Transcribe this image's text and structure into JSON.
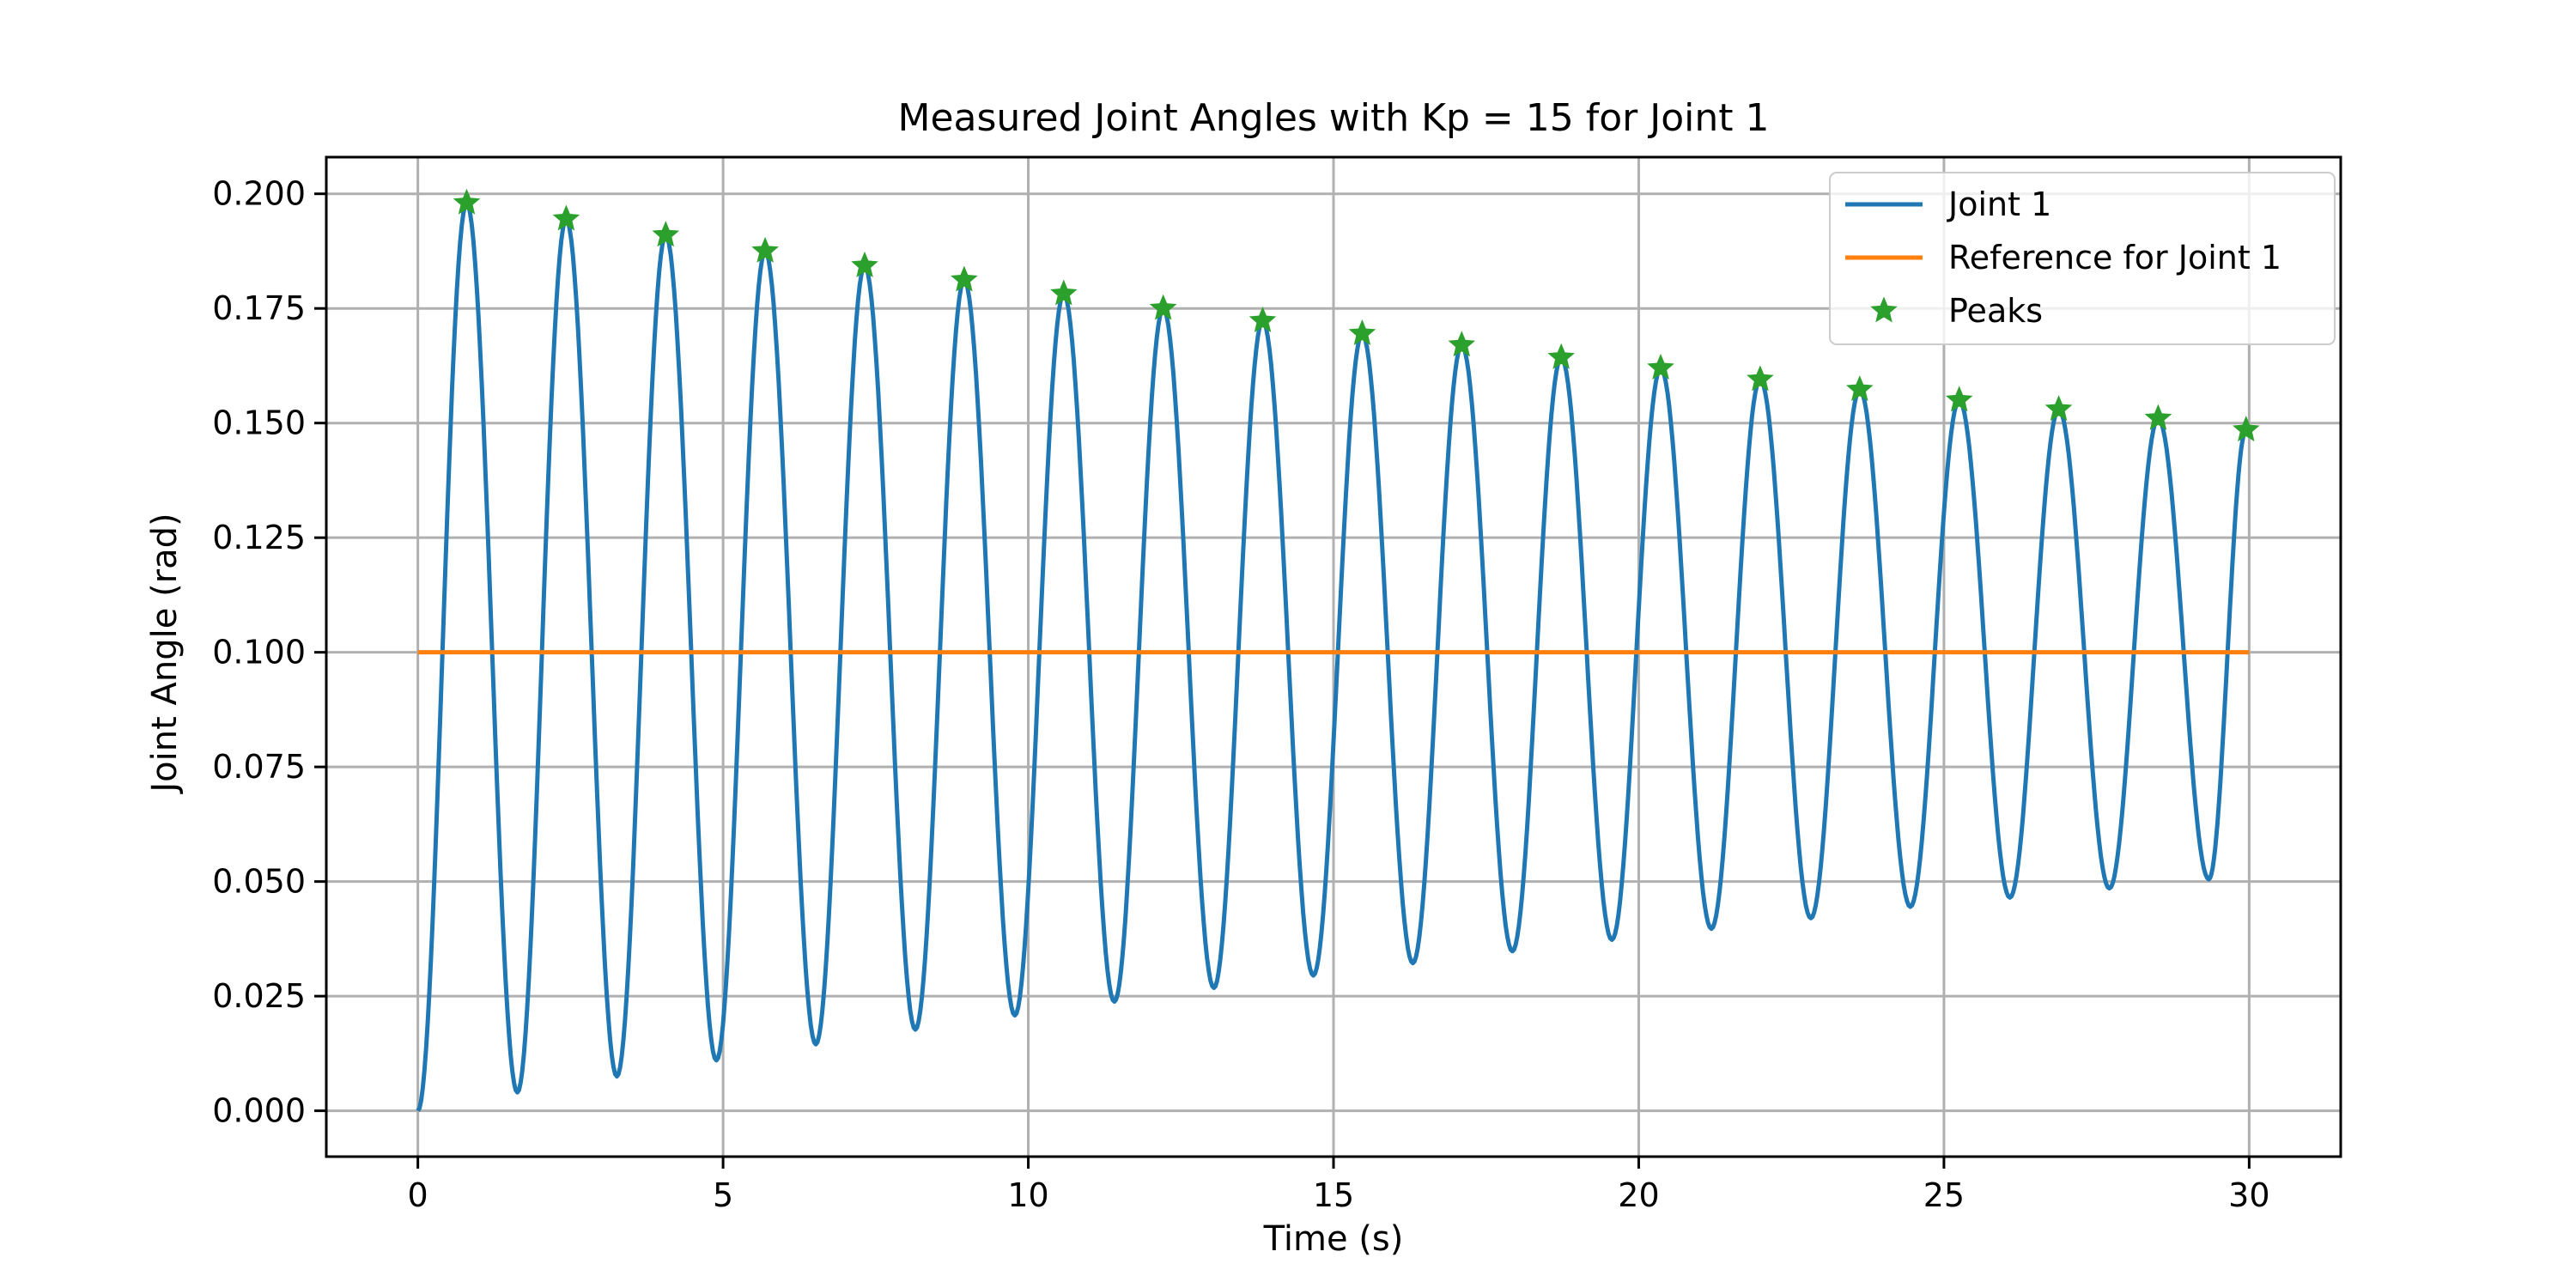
{
  "chart_data": {
    "type": "line",
    "title": "Measured Joint Angles with Kp = 15 for Joint 1",
    "xlabel": "Time (s)",
    "ylabel": "Joint Angle (rad)",
    "xlim": [
      -1.5,
      31.5
    ],
    "ylim": [
      -0.01,
      0.208
    ],
    "xticks": [
      0,
      5,
      10,
      15,
      20,
      25,
      30
    ],
    "xtick_labels": [
      "0",
      "5",
      "10",
      "15",
      "20",
      "25",
      "30"
    ],
    "yticks": [
      0.0,
      0.025,
      0.05,
      0.075,
      0.1,
      0.125,
      0.15,
      0.175,
      0.2
    ],
    "ytick_labels": [
      "0.000",
      "0.025",
      "0.050",
      "0.075",
      "0.100",
      "0.125",
      "0.150",
      "0.175",
      "0.200"
    ],
    "grid": true,
    "legend_position": "top-right",
    "colors": {
      "joint": "#1f77b4",
      "reference": "#ff7f0e",
      "peaks": "#2ca02c",
      "grid": "#b0b0b0"
    },
    "series": [
      {
        "name": "Joint 1",
        "kind": "line",
        "x": [
          0,
          0.8,
          1.63,
          2.43,
          3.26,
          4.06,
          4.89,
          5.69,
          6.52,
          7.32,
          8.15,
          8.95,
          9.78,
          10.58,
          11.41,
          12.21,
          13.04,
          13.84,
          14.67,
          15.47,
          16.3,
          17.1,
          17.93,
          18.73,
          19.56,
          20.36,
          21.19,
          21.99,
          22.82,
          23.62,
          24.45,
          25.25,
          26.08,
          26.88,
          27.71,
          28.51,
          29.34,
          29.95
        ],
        "y": [
          0.0,
          0.198,
          0.004,
          0.1945,
          0.0075,
          0.191,
          0.011,
          0.1875,
          0.0145,
          0.1843,
          0.0177,
          0.1812,
          0.0208,
          0.1782,
          0.0238,
          0.175,
          0.0268,
          0.1723,
          0.0295,
          0.1695,
          0.0322,
          0.167,
          0.0348,
          0.1643,
          0.0373,
          0.162,
          0.0397,
          0.1595,
          0.042,
          0.1573,
          0.0445,
          0.155,
          0.0465,
          0.153,
          0.0485,
          0.151,
          0.0505,
          0.1485
        ]
      },
      {
        "name": "Reference for Joint 1",
        "kind": "line",
        "x": [
          0,
          30
        ],
        "y": [
          0.1,
          0.1
        ]
      },
      {
        "name": "Peaks",
        "kind": "marker",
        "x": [
          0.8,
          2.43,
          4.06,
          5.69,
          7.32,
          8.95,
          10.58,
          12.21,
          13.84,
          15.47,
          17.1,
          18.73,
          20.36,
          21.99,
          23.62,
          25.25,
          26.88,
          28.51,
          29.95
        ],
        "y": [
          0.198,
          0.1945,
          0.191,
          0.1875,
          0.1843,
          0.1812,
          0.1782,
          0.175,
          0.1723,
          0.1695,
          0.167,
          0.1643,
          0.162,
          0.1595,
          0.1573,
          0.155,
          0.153,
          0.151,
          0.1485
        ]
      }
    ]
  }
}
